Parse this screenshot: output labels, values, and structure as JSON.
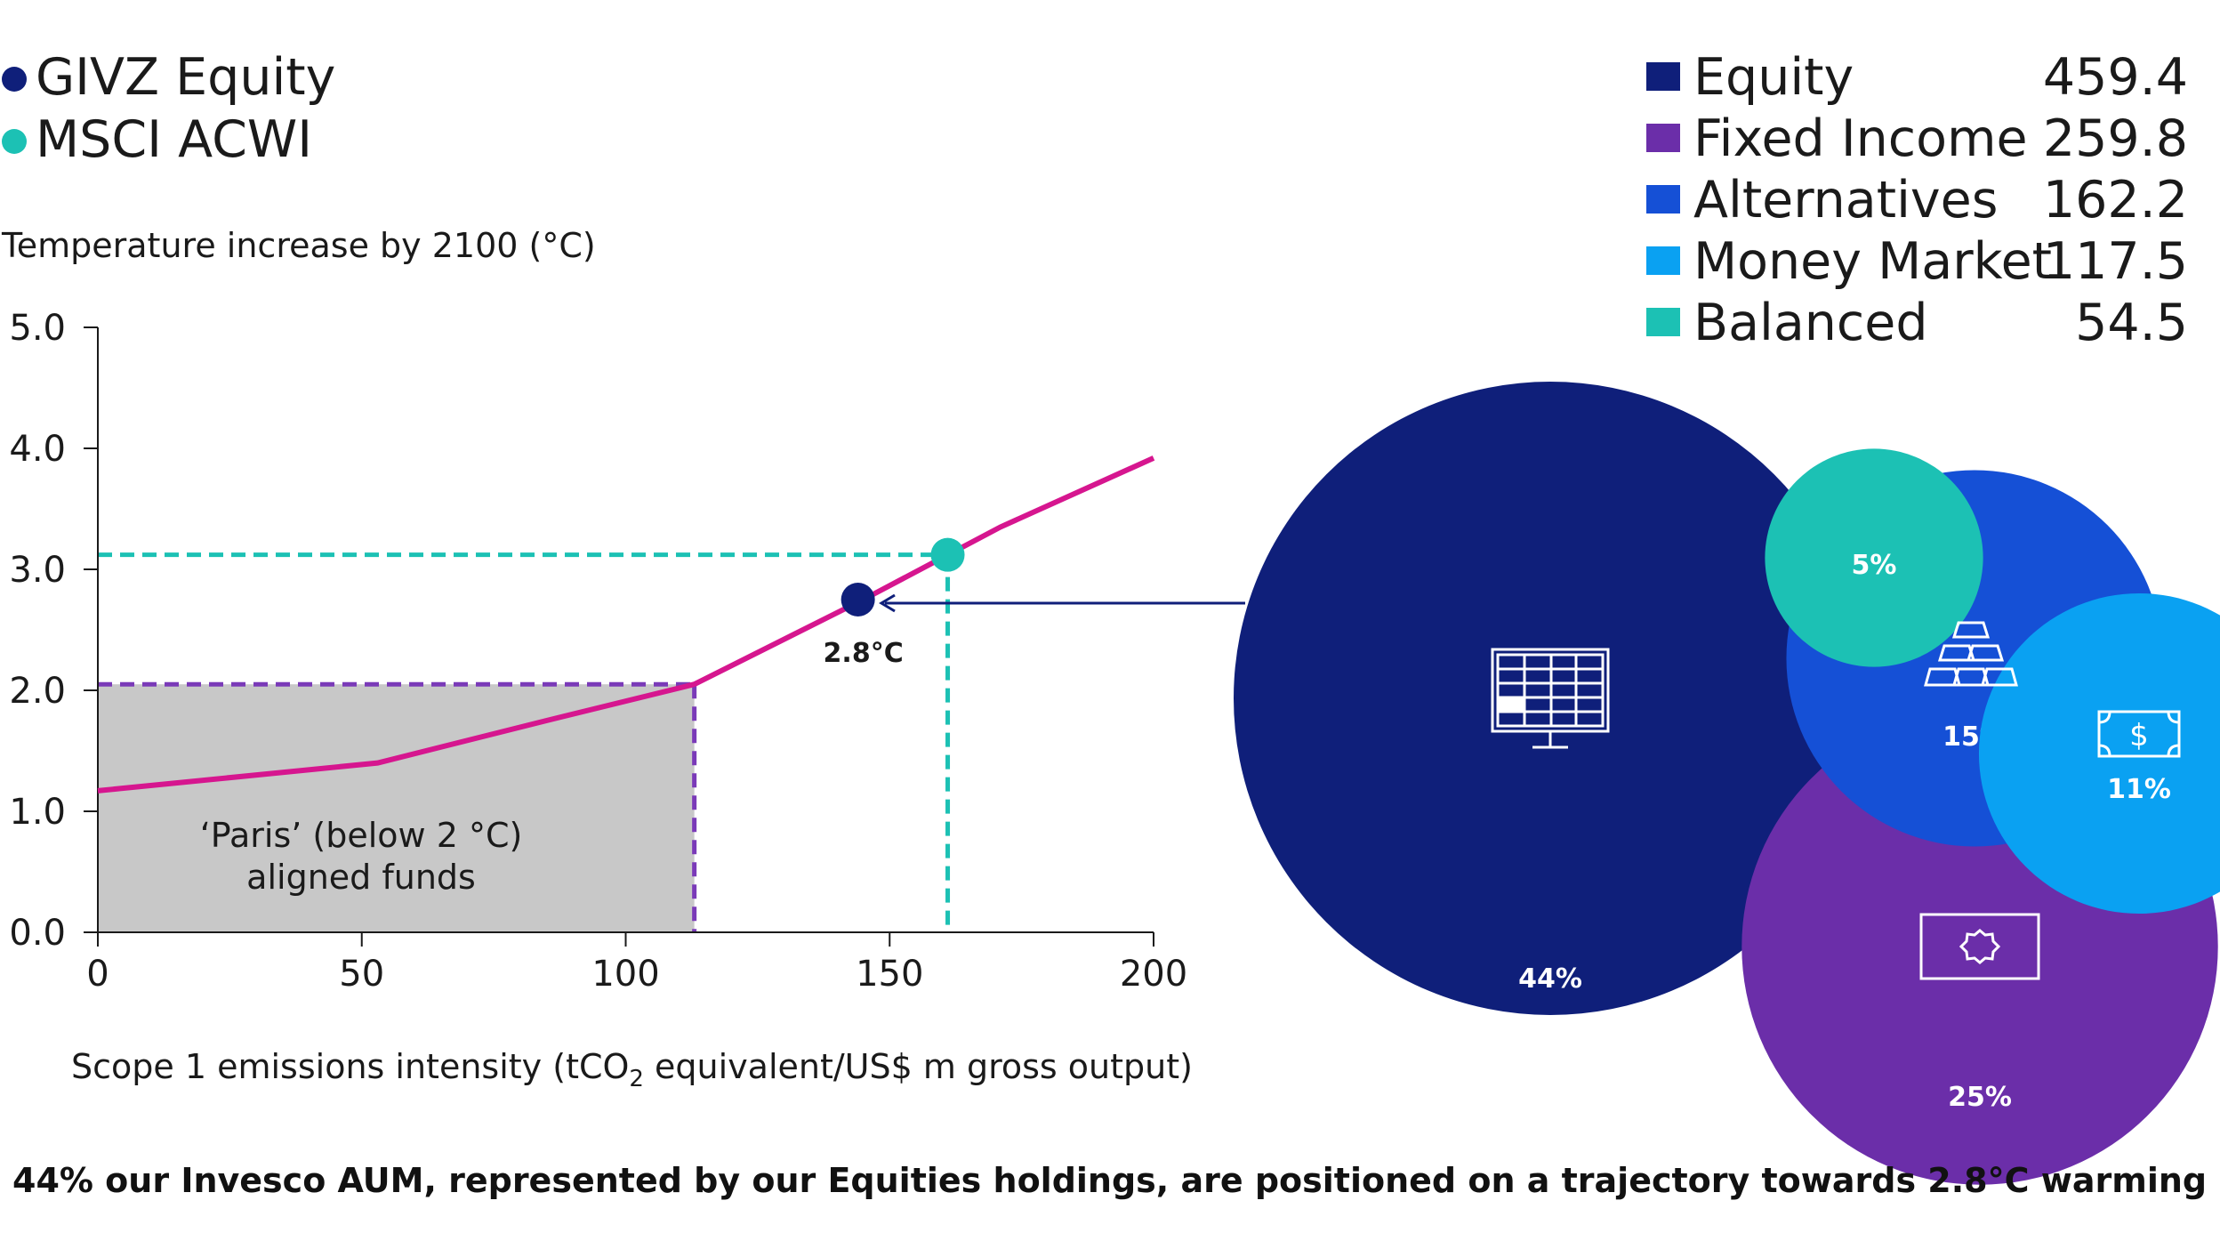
{
  "chart_data": [
    {
      "type": "line",
      "ylabel": "Temperature increase by 2100 (°C)",
      "xlabel_parts": [
        "Scope 1 emissions intensity (tCO",
        "2",
        " equivalent/US$ m gross output)"
      ],
      "xlim": [
        0,
        200
      ],
      "ylim": [
        0,
        5
      ],
      "x_ticks": [
        "0",
        "50",
        "100",
        "150",
        "200"
      ],
      "y_ticks": [
        "0.0",
        "1.0",
        "2.0",
        "3.0",
        "4.0",
        "5.0"
      ],
      "series": [
        {
          "color": "#d6168f",
          "points": [
            [
              0,
              1.17
            ],
            [
              53,
              1.4
            ],
            [
              85,
              1.75
            ],
            [
              113,
              2.05
            ],
            [
              145,
              2.75
            ],
            [
              171,
              3.35
            ],
            [
              200,
              3.92
            ]
          ]
        }
      ],
      "markers": [
        {
          "name": "GIVZ Equity",
          "x": 144,
          "y": 2.75,
          "color": "#0f1f7a",
          "label": "2.8°C"
        },
        {
          "name": "MSCI ACWI",
          "x": 161,
          "y": 3.12,
          "color": "#1cc1b4"
        }
      ],
      "reference_lines": [
        {
          "x": 113,
          "y": 2.05,
          "color": "#7a3ab8"
        },
        {
          "x": 161,
          "y": 3.12,
          "color": "#1cc1b4"
        }
      ],
      "shaded_region": {
        "x": [
          0,
          113
        ],
        "y": [
          0,
          2.05
        ],
        "color": "#c8c8c8",
        "label_lines": [
          "‘Paris’ (below 2 °C)",
          "aligned funds"
        ]
      }
    },
    {
      "type": "bubble",
      "categories": [
        "Equity",
        "Fixed Income",
        "Alternatives",
        "Money Market",
        "Balanced"
      ],
      "values": [
        459.4,
        259.8,
        162.2,
        117.5,
        54.5
      ],
      "value_labels": [
        "459.4",
        "259.8",
        "162.2",
        "117.5",
        "54.5"
      ],
      "percent_labels": [
        "44%",
        "25%",
        "15%",
        "11%",
        "5%"
      ],
      "colors": [
        "#0f1f7a",
        "#6b2ea9",
        "#1550d6",
        "#0aa1f2",
        "#1cc1b4"
      ],
      "icons": [
        "monitor-grid-icon",
        "banknote-icon",
        "gold-bars-icon",
        "dollar-bill-icon",
        ""
      ]
    }
  ],
  "marker_legend": [
    {
      "label": "GIVZ Equity",
      "color": "#0f1f7a"
    },
    {
      "label": "MSCI ACWI",
      "color": "#1cc1b4"
    }
  ],
  "caption": "44% our Invesco AUM, represented by our Equities holdings, are positioned on a trajectory towards 2.8°C warming",
  "colors": {
    "arrow": "#0f1f7a",
    "text": "#1a1a1a"
  }
}
